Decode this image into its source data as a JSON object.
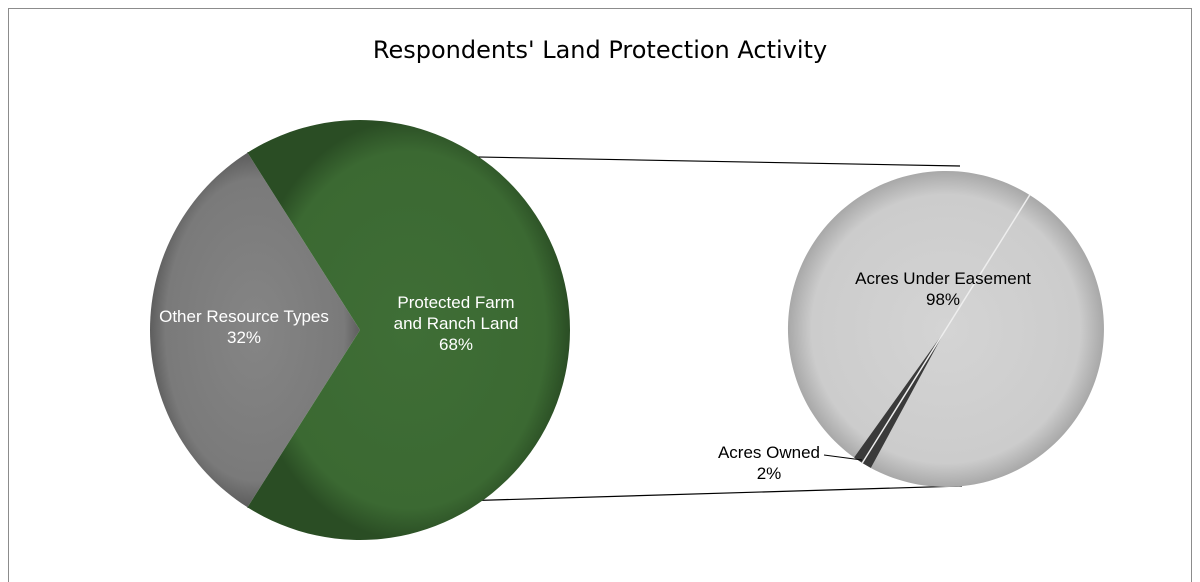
{
  "chart_data": [
    {
      "type": "pie",
      "title": "Respondents' Land Protection Activity",
      "slices": [
        {
          "label": "Other Resource Types",
          "value_label": "32%",
          "value": 32,
          "color": "#7f7f7f",
          "label_color": "#ffffff"
        },
        {
          "label": "Protected Farm and Ranch Land",
          "label_lines": [
            "Protected Farm",
            "and Ranch Land"
          ],
          "value_label": "68%",
          "value": 68,
          "color": "#3d6b34",
          "label_color": "#ffffff"
        }
      ],
      "breakout_of": "Protected Farm and Ranch Land"
    },
    {
      "type": "pie",
      "slices": [
        {
          "label": "Acres Under Easement",
          "value_label": "98%",
          "value": 98,
          "color": "#d0d0d0",
          "label_color": "#000000"
        },
        {
          "label": "Acres Owned",
          "value_label": "2%",
          "value": 2,
          "color": "#3a3a3a",
          "label_color": "#000000"
        }
      ]
    }
  ]
}
